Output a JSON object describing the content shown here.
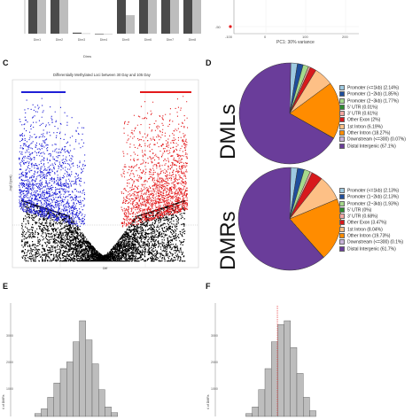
{
  "panels": {
    "C": "C",
    "D": "D",
    "E": "E",
    "F": "F"
  },
  "top_left": {
    "xlabel": "Dims",
    "categories": [
      "Dim1",
      "Dim2",
      "Dim3",
      "Dim4",
      "Dim5",
      "Dim6",
      "Dim7",
      "Dim8"
    ],
    "bars_dark": [
      1.0,
      1.0,
      0.03,
      0.0,
      1.0,
      1.0,
      1.0,
      1.0
    ],
    "bars_light": [
      1.0,
      1.0,
      0.01,
      0.0,
      0.55,
      1.0,
      1.0,
      1.0
    ]
  },
  "top_right": {
    "xlabel": "PC1: 30% variance",
    "xticks": [
      "-100",
      "0",
      "100",
      "200"
    ],
    "ytick": "-50"
  },
  "volcano": {
    "title": "Differentially Methylated Loci between 30 Day and 105 Day",
    "xlabel": "Diff",
    "ylabel": "-log10(pval)",
    "colors": {
      "hypo": "#1f1fd6",
      "hyper": "#e31a1c",
      "ns": "#000000"
    }
  },
  "chart_data": [
    {
      "type": "pie",
      "title": "DMLs",
      "labels": [
        "Promoter (<=1kb) (2.14%)",
        "Promoter (1~2kb) (1.85%)",
        "Promoter (2~3kb) (1.77%)",
        "5' UTR (0.01%)",
        "3' UTR (0.61%)",
        "Other Exon (2%)",
        "1st Intron (6.19%)",
        "Other Intron (18.27%)",
        "Downstream (<=300) (0.07%)",
        "Distal Intergenic (67.1%)"
      ],
      "values": [
        2.14,
        1.85,
        1.77,
        0.01,
        0.61,
        2,
        6.19,
        18.27,
        0.07,
        67.1
      ],
      "colors": [
        "#9ecae1",
        "#1f4e9c",
        "#a6d98c",
        "#2e8b2e",
        "#f4a6a0",
        "#d7191c",
        "#fdc086",
        "#ff8c00",
        "#c9b3d9",
        "#6a3d9a"
      ]
    },
    {
      "type": "pie",
      "title": "DMRs",
      "labels": [
        "Promoter (<=1kb) (2.13%)",
        "Promoter (1~2kb) (2.13%)",
        "Promoter (2~3kb) (1.93%)",
        "5' UTR (0%)",
        "3' UTR (0.68%)",
        "Other Exon (3.47%)",
        "1st Intron (8.04%)",
        "Other Intron (19.73%)",
        "Downstream (<=300) (0.1%)",
        "Distal Intergenic (61.7%)"
      ],
      "values": [
        2.13,
        2.13,
        1.93,
        0,
        0.68,
        3.47,
        8.04,
        19.73,
        0.1,
        61.7
      ],
      "colors": [
        "#9ecae1",
        "#1f4e9c",
        "#a6d98c",
        "#2e8b2e",
        "#f4a6a0",
        "#d7191c",
        "#fdc086",
        "#ff8c00",
        "#c9b3d9",
        "#6a3d9a"
      ]
    },
    {
      "type": "bar",
      "title": "",
      "ylabel": "# of DMRs",
      "ytick_labels": [
        "3000",
        "2000",
        "1000"
      ],
      "values": [
        0.03,
        0.08,
        0.2,
        0.35,
        0.5,
        0.57,
        0.78,
        1.0,
        0.8,
        0.55,
        0.28,
        0.1,
        0.04
      ]
    },
    {
      "type": "bar",
      "title": "",
      "ylabel": "# of DMRs",
      "ytick_labels": [
        "3000",
        "2000",
        "1000"
      ],
      "values": [
        0.03,
        0.1,
        0.28,
        0.5,
        0.78,
        0.96,
        1.0,
        0.72,
        0.45,
        0.2,
        0.06
      ]
    }
  ]
}
